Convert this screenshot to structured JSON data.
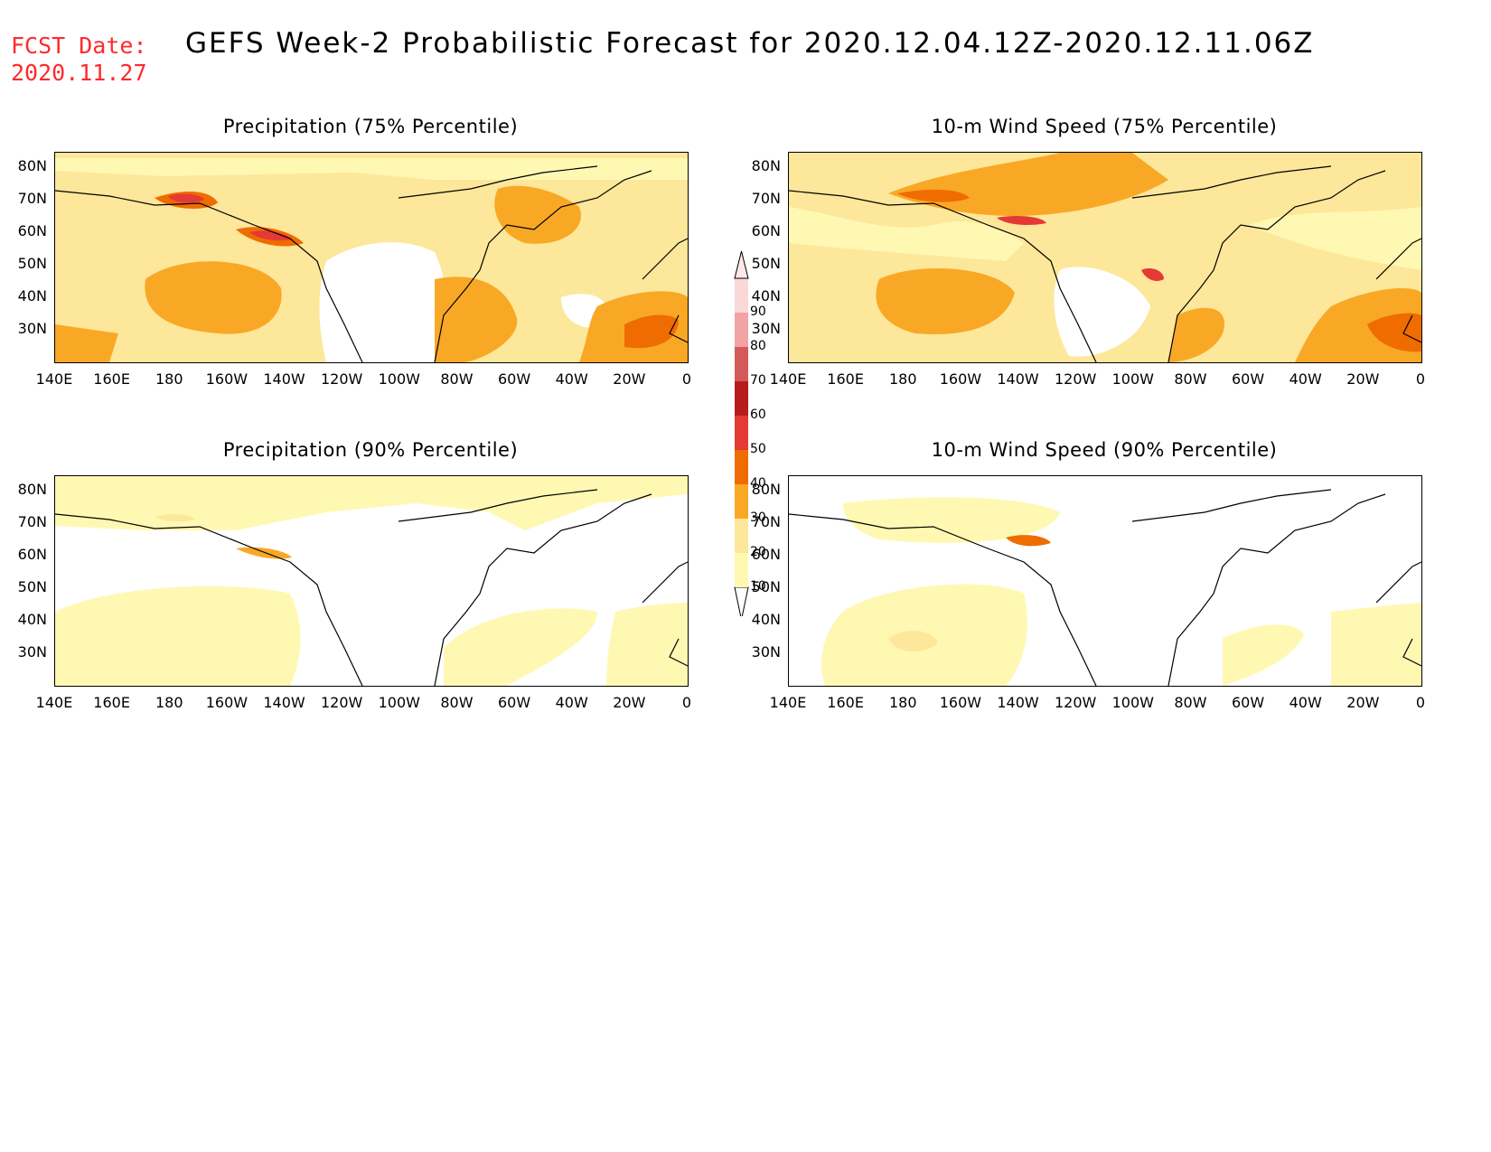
{
  "fcst": {
    "line1": "FCST Date:",
    "line2": "2020.11.27"
  },
  "title": "GEFS Week-2 Probabilistic Forecast for 2020.12.04.12Z-2020.12.11.06Z",
  "colors": {
    "c10": "#fff8b3",
    "c20": "#fde79a",
    "c30": "#f9a825",
    "c40": "#ef6c00",
    "c50": "#e53935",
    "c60": "#b71c1c",
    "c70": "#d45a5a",
    "c80": "#f2a3a3",
    "c90": "#fbd8d8",
    "title_red": "#ff2a2a"
  },
  "legend": {
    "labels": [
      "10",
      "20",
      "30",
      "40",
      "50",
      "60",
      "70",
      "80",
      "90"
    ]
  },
  "panels": [
    {
      "id": "precip75",
      "title": "Precipitation (75% Percentile)",
      "ylabels": [
        "80N",
        "70N",
        "60N",
        "50N",
        "40N",
        "30N"
      ],
      "xlabels": [
        "140E",
        "160E",
        "180",
        "160W",
        "140W",
        "120W",
        "100W",
        "80W",
        "60W",
        "40W",
        "20W",
        "0"
      ]
    },
    {
      "id": "wind75",
      "title": "10-m Wind Speed (75% Percentile)",
      "ylabels": [
        "80N",
        "70N",
        "60N",
        "50N",
        "40N",
        "30N"
      ],
      "xlabels": [
        "140E",
        "160E",
        "180",
        "160W",
        "140W",
        "120W",
        "100W",
        "80W",
        "60W",
        "40W",
        "20W",
        "0"
      ]
    },
    {
      "id": "precip90",
      "title": "Precipitation (90% Percentile)",
      "ylabels": [
        "80N",
        "70N",
        "60N",
        "50N",
        "40N",
        "30N"
      ],
      "xlabels": [
        "140E",
        "160E",
        "180",
        "160W",
        "140W",
        "120W",
        "100W",
        "80W",
        "60W",
        "40W",
        "20W",
        "0"
      ]
    },
    {
      "id": "wind90",
      "title": "10-m Wind Speed (90% Percentile)",
      "ylabels": [
        "80N",
        "70N",
        "60N",
        "50N",
        "40N",
        "30N"
      ],
      "xlabels": [
        "140E",
        "160E",
        "180",
        "160W",
        "140W",
        "120W",
        "100W",
        "80W",
        "60W",
        "40W",
        "20W",
        "0"
      ]
    }
  ]
}
